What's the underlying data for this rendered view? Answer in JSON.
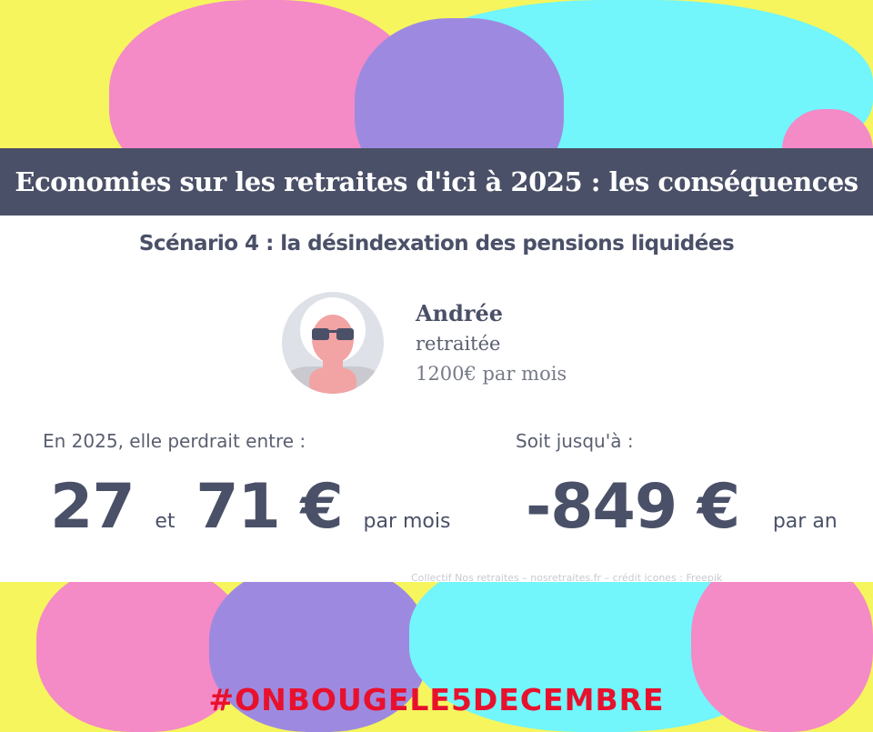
{
  "colors": {
    "banner": "#4a5067",
    "text": "#4a5067",
    "hashtag": "#e8112d",
    "background_colors": [
      "#f6f55e",
      "#f48ac6",
      "#72f5fb",
      "#9d8ae0"
    ]
  },
  "banner": {
    "title": "Economies sur les retraites d'ici à 2025 : les conséquences"
  },
  "subtitle": "Scénario 4 : la désindexation des pensions liquidées",
  "person": {
    "name": "Andrée",
    "role": "retraitée",
    "income": "1200€ par mois",
    "avatar_icon": "retired-woman-sunglasses-icon"
  },
  "monthly": {
    "label": "En 2025, elle perdrait entre :",
    "low": "27",
    "connector": "et",
    "high": "71 €",
    "unit": "par mois"
  },
  "yearly": {
    "label": "Soit jusqu'à :",
    "value": "-849 €",
    "unit": "par an"
  },
  "credit": "Collectif Nos retraites – nosretraites.fr – crédit icones : Freepik",
  "hashtag": "#ONBOUGELE5DECEMBRE"
}
